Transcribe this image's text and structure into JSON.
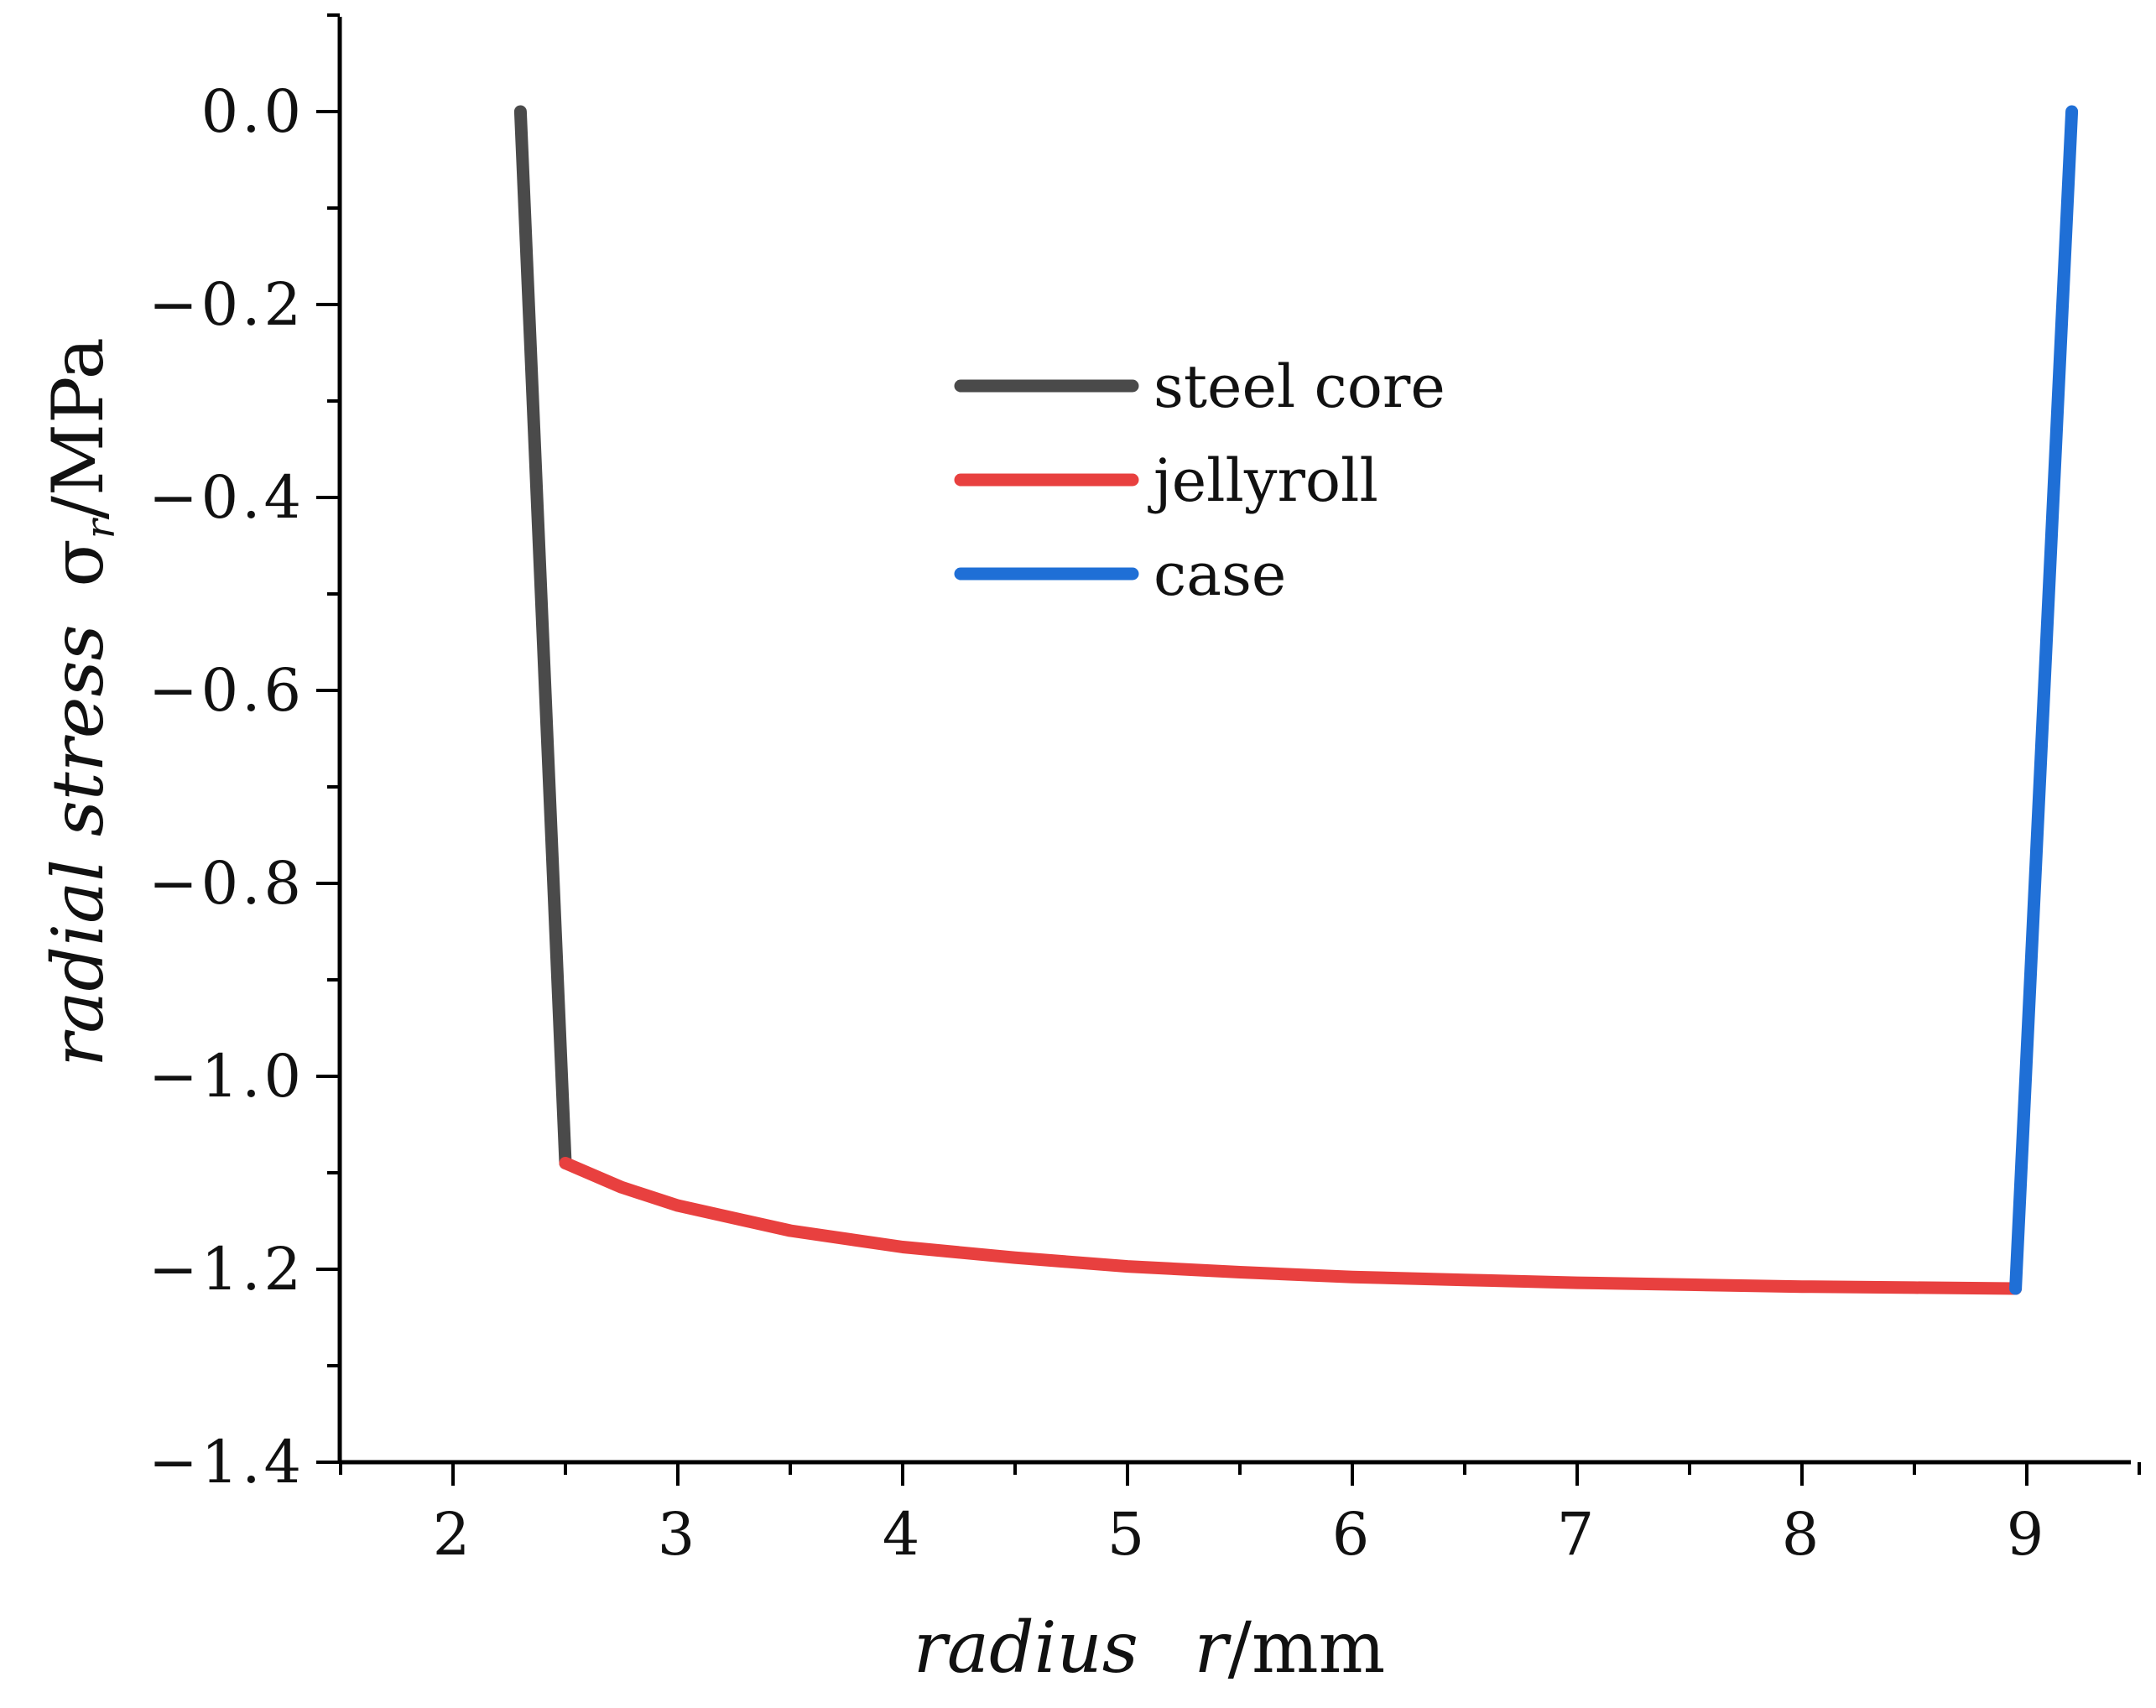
{
  "chart_data": {
    "type": "line",
    "title": "",
    "xlabel": {
      "italic": "radius",
      "symbol": "r",
      "unit": "/mm"
    },
    "ylabel": {
      "italic": "radial stress",
      "symbol": "σ",
      "subscript": "r",
      "unit": "/MPa"
    },
    "xlim": [
      1.5,
      9.5
    ],
    "ylim": [
      -1.4,
      0.1
    ],
    "x_ticks": [
      2,
      3,
      4,
      5,
      6,
      7,
      8,
      9
    ],
    "x_tick_labels": [
      "2",
      "3",
      "4",
      "5",
      "6",
      "7",
      "8",
      "9"
    ],
    "y_ticks": [
      0.0,
      -0.2,
      -0.4,
      -0.6,
      -0.8,
      -1.0,
      -1.2,
      -1.4
    ],
    "y_tick_labels": [
      "0.0",
      "−0.2",
      "−0.4",
      "−0.6",
      "−0.8",
      "−1.0",
      "−1.2",
      "−1.4"
    ],
    "legend_position": "upper-center",
    "series": [
      {
        "name": "steel core",
        "color": "#4a4a4a",
        "x": [
          2.3,
          2.5
        ],
        "y": [
          0.0,
          -1.09
        ]
      },
      {
        "name": "jellyroll",
        "color": "#e8403f",
        "x": [
          2.5,
          2.75,
          3.0,
          3.5,
          4.0,
          4.5,
          5.0,
          5.5,
          6.0,
          6.5,
          7.0,
          7.5,
          8.0,
          8.5,
          8.95
        ],
        "y": [
          -1.09,
          -1.115,
          -1.134,
          -1.16,
          -1.177,
          -1.188,
          -1.197,
          -1.203,
          -1.208,
          -1.211,
          -1.214,
          -1.216,
          -1.218,
          -1.219,
          -1.22
        ]
      },
      {
        "name": "case",
        "color": "#1f6fd6",
        "x": [
          8.95,
          9.2
        ],
        "y": [
          -1.22,
          0.0
        ]
      }
    ]
  }
}
